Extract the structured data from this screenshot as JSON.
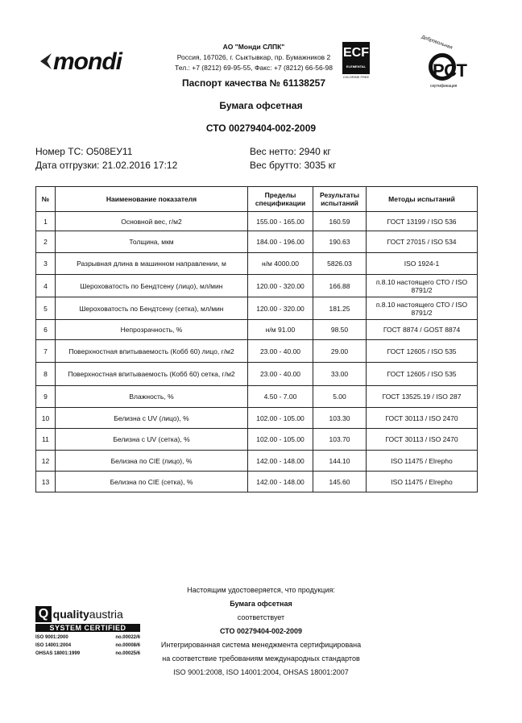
{
  "header": {
    "logo": "mondi",
    "company": "АО \"Монди СЛПК\"",
    "address": "Россия, 167026, г. Сыктывкар, пр. Бумажников 2",
    "phone": "Тел.: +7 (8212) 69-95-55, Факс: +7 (8212) 66-56-98",
    "ecf": "ECF",
    "ecf_sub": "ELEMENTAL",
    "ecf_note": "CHLORINE FREE",
    "rst_top": "Добровольная",
    "rst_mark": "РСТ",
    "rst_bottom": "сертификация",
    "passport": "Паспорт качества № 61138257"
  },
  "product": "Бумага офсетная",
  "standard": "СТО 00279404-002-2009",
  "info": {
    "ts": "Номер ТС: О508ЕУ11",
    "date": "Дата отгрузки: 21.02.2016 17:12",
    "net": "Вес нетто: 2940 кг",
    "gross": "Вес брутто: 3035 кг"
  },
  "table": {
    "headers": [
      "№",
      "Наименование показателя",
      "Пределы спецификации",
      "Результаты испытаний",
      "Методы испытаний"
    ],
    "rows": [
      [
        "1",
        "Основной вес, г/м2",
        "155.00 - 165.00",
        "160.59",
        "ГОСТ 13199 / ISO 536"
      ],
      [
        "2",
        "Толщина, мкм",
        "184.00 - 196.00",
        "190.63",
        "ГОСТ 27015 / ISO 534"
      ],
      [
        "3",
        "Разрывная длина в машинном направлении, м",
        "н/м 4000.00",
        "5826.03",
        "ISO 1924-1"
      ],
      [
        "4",
        "Шероховатость по Бендтсену (лицо), мл/мин",
        "120.00 - 320.00",
        "166.88",
        "п.8.10 настоящего СТО / ISO 8791/2"
      ],
      [
        "5",
        "Шероховатость по Бендтсену (сетка), мл/мин",
        "120.00 - 320.00",
        "181.25",
        "п.8.10 настоящего СТО / ISO 8791/2"
      ],
      [
        "6",
        "Непрозрачность, %",
        "н/м 91.00",
        "98.50",
        "ГОСТ 8874 / GOST 8874"
      ],
      [
        "7",
        "Поверхностная впитываемость (Кобб 60) лицо, г/м2",
        "23.00 - 40.00",
        "29.00",
        "ГОСТ 12605 / ISO 535"
      ],
      [
        "8",
        "Поверхностная впитываемость (Кобб 60) сетка, г/м2",
        "23.00 - 40.00",
        "33.00",
        "ГОСТ 12605 / ISO 535"
      ],
      [
        "9",
        "Влажность, %",
        "4.50 - 7.00",
        "5.00",
        "ГОСТ 13525.19 / ISO 287"
      ],
      [
        "10",
        "Белизна с UV (лицо), %",
        "102.00 - 105.00",
        "103.30",
        "ГОСТ 30113 / ISO 2470"
      ],
      [
        "11",
        "Белизна с UV (сетка), %",
        "102.00 - 105.00",
        "103.70",
        "ГОСТ 30113 / ISO 2470"
      ],
      [
        "12",
        "Белизна по CIE (лицо), %",
        "142.00 - 148.00",
        "144.10",
        "ISO 11475 / Elrepho"
      ],
      [
        "13",
        "Белизна по CIE (сетка), %",
        "142.00 - 148.00",
        "145.60",
        "ISO 11475 / Elrepho"
      ]
    ]
  },
  "footer": {
    "l1": "Настоящим удостоверяется, что продукция:",
    "l2": "Бумага офсетная",
    "l3": "соответствует",
    "l4": "СТО 00279404-002-2009",
    "l5": "Интегрированная система менеджмента сертифицирована",
    "l6": "на соответствие требованиям международных стандартов",
    "l7": "ISO 9001:2008, ISO 14001:2004, OHSAS 18001:2007"
  },
  "qa": {
    "q": "Q",
    "name_bold": "quality",
    "name": "austria",
    "cert": "SYSTEM CERTIFIED",
    "items": [
      [
        "ISO 9001:2000",
        "no.00022/6"
      ],
      [
        "ISO 14001:2004",
        "no.00008/6"
      ],
      [
        "OHSAS 18001:1999",
        "no.00025/6"
      ]
    ]
  }
}
